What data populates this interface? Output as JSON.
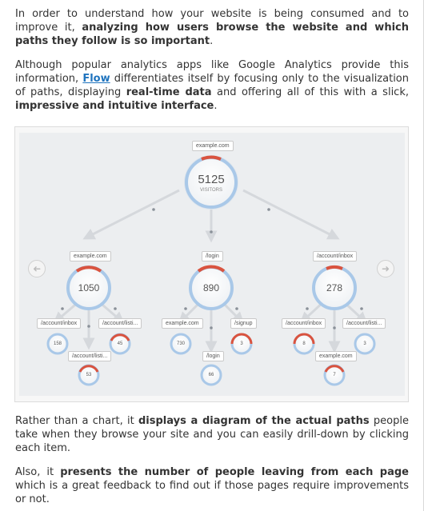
{
  "article": {
    "p1": {
      "t1": "In order to understand how your website is being consumed and to improve it, ",
      "b1": "analyzing how users browse the website and which paths they follow is so important",
      "t2": "."
    },
    "p2": {
      "t1": "Although popular analytics apps like Google Analytics provide this information, ",
      "link": "Flow",
      "t2": " differentiates itself by focusing only to the visualization of paths, displaying ",
      "b1": "real-time data",
      "t3": " and offering all of this with a slick, ",
      "b2": "impressive and intuitive interface",
      "t4": "."
    },
    "p3": {
      "t1": "Rather than a chart, it ",
      "b1": "displays a diagram of the actual paths",
      "t2": " people take when they browse your site and you can easily drill-down by clicking each item."
    },
    "p4": {
      "t1": "Also, it ",
      "b1": "presents the number of people leaving from each page",
      "t2": " which is a great feedback to find out if those pages require improvements or not."
    }
  },
  "diagram": {
    "root": {
      "label": "example.com",
      "value": "5125",
      "sublabel": "VISITORS"
    },
    "level1": [
      {
        "label": "example.com",
        "value": "1050"
      },
      {
        "label": "/login",
        "value": "890"
      },
      {
        "label": "/account/inbox",
        "value": "278"
      }
    ],
    "level2": [
      {
        "label": "/account/inbox",
        "value": "158"
      },
      {
        "label": "/account/listi...",
        "value": "45"
      },
      {
        "label": "/account/listi...",
        "value": "53"
      },
      {
        "label": "example.com",
        "value": "730"
      },
      {
        "label": "/signup",
        "value": "3"
      },
      {
        "label": "/login",
        "value": "66"
      },
      {
        "label": "/account/inbox",
        "value": "8"
      },
      {
        "label": "/account/listi...",
        "value": "3"
      },
      {
        "label": "example.com",
        "value": "7"
      }
    ],
    "nav": {
      "prev": "➜",
      "next": "➜"
    },
    "colors": {
      "ring": "#a9c8e8",
      "exit": "#d9533f",
      "link": "#1e73be"
    }
  }
}
